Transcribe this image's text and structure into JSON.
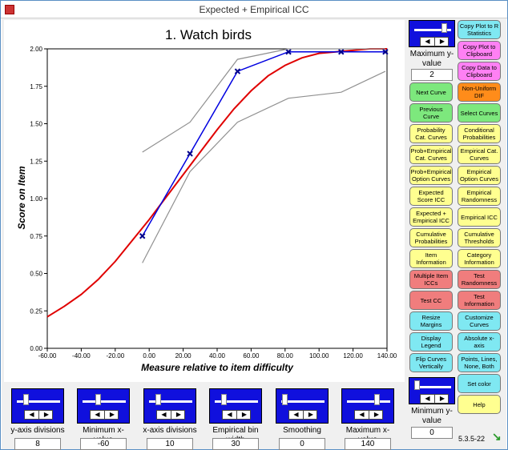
{
  "window": {
    "title": "Expected + Empirical ICC"
  },
  "plot": {
    "title": "1. Watch birds",
    "xlabel": "Measure relative to item difficulty",
    "ylabel": "Score on Item"
  },
  "chart_data": {
    "type": "line",
    "title": "1. Watch birds",
    "xlabel": "Measure relative to item difficulty",
    "ylabel": "Score on Item",
    "xlim": [
      -60,
      140
    ],
    "ylim": [
      0,
      2
    ],
    "x_ticks": [
      "-60.00",
      "-40.00",
      "-20.00",
      "0.00",
      "20.00",
      "40.00",
      "60.00",
      "80.00",
      "100.00",
      "120.00",
      "140.00"
    ],
    "y_ticks": [
      "0.00",
      "0.25",
      "0.50",
      "0.75",
      "1.00",
      "1.25",
      "1.50",
      "1.75",
      "2.00"
    ],
    "grid": false,
    "series": [
      {
        "role": "expected",
        "color": "#e00000",
        "x": [
          -60,
          -50,
          -40,
          -30,
          -20,
          -10,
          0,
          10,
          20,
          30,
          40,
          50,
          60,
          70,
          80,
          90,
          100,
          110,
          120,
          130,
          140
        ],
        "values": [
          0.21,
          0.28,
          0.36,
          0.46,
          0.58,
          0.72,
          0.86,
          1.01,
          1.16,
          1.31,
          1.46,
          1.6,
          1.72,
          1.82,
          1.89,
          1.94,
          1.97,
          1.98,
          1.99,
          2.0,
          2.0
        ]
      },
      {
        "role": "empirical",
        "color": "#0000e0",
        "x": [
          -4,
          24,
          52,
          82,
          113,
          139
        ],
        "values": [
          0.75,
          1.3,
          1.85,
          1.98,
          1.98,
          1.98
        ]
      },
      {
        "role": "upper-confidence",
        "color": "#909090",
        "x": [
          -4,
          24,
          52,
          82,
          113,
          139
        ],
        "values": [
          1.31,
          1.51,
          1.93,
          2.0,
          2.0,
          2.0
        ]
      },
      {
        "role": "lower-confidence",
        "color": "#909090",
        "x": [
          -4,
          24,
          52,
          82,
          113,
          139
        ],
        "values": [
          0.57,
          1.18,
          1.51,
          1.67,
          1.71,
          1.85
        ]
      }
    ]
  },
  "bottom_controls": [
    {
      "label": "y-axis divisions",
      "value": "8"
    },
    {
      "label": "Minimum x-value",
      "value": "-60"
    },
    {
      "label": "x-axis divisions",
      "value": "10"
    },
    {
      "label": "Empirical bin width",
      "value": "30"
    },
    {
      "label": "Smoothing",
      "value": "0"
    },
    {
      "label": "Maximum x-value",
      "value": "140"
    }
  ],
  "right_sliders": {
    "max_y": {
      "label": "Maximum y-value",
      "value": "2"
    },
    "min_y": {
      "label": "Minimum y-value",
      "value": "0"
    }
  },
  "buttons": {
    "copy_plot_r": "Copy Plot to R Statistics",
    "copy_plot_clip": "Copy Plot to Clipboard",
    "copy_data_clip": "Copy Data to Clipboard",
    "next_curve": "Next Curve",
    "non_uniform_dif": "Non-Uniform DIF",
    "previous_curve": "Previous Curve",
    "select_curves": "Select Curves",
    "prob_cat_curves": "Probability Cat. Curves",
    "conditional_prob": "Conditional Probabilities",
    "prob_emp_cat": "Prob+Empirical Cat. Curves",
    "empirical_cat": "Empirical Cat. Curves",
    "prob_emp_option": "Prob+Empirical Option Curves",
    "empirical_option": "Empirical Option Curves",
    "expected_score_icc": "Expected Score ICC",
    "empirical_randomness": "Empirical Randomness",
    "expected_empirical_icc": "Expected + Empirical ICC",
    "empirical_icc": "Empirical ICC",
    "cumulative_prob": "Cumulative Probabilities",
    "cumulative_thresholds": "Cumulative Thresholds",
    "item_information": "Item Information",
    "category_information": "Category Information",
    "multiple_item_iccs": "Multiple Item ICCs",
    "test_randomness": "Test Randomness",
    "test_cc": "Test CC",
    "test_information": "Test Information",
    "resize_margins": "Resize Margins",
    "customize_curves": "Customize Curves",
    "display_legend": "Display Legend",
    "absolute_x_axis": "Absolute x-axis",
    "flip_curves": "Flip Curves Vertically",
    "points_lines": "Points, Lines, None, Both",
    "set_color": "Set color",
    "help": "Help"
  },
  "version": "5.3.5-22",
  "colors": {
    "slider_bg": "#1010dd",
    "expected_curve": "#e00000",
    "empirical_curve": "#0000e0",
    "confidence_band": "#909090"
  }
}
